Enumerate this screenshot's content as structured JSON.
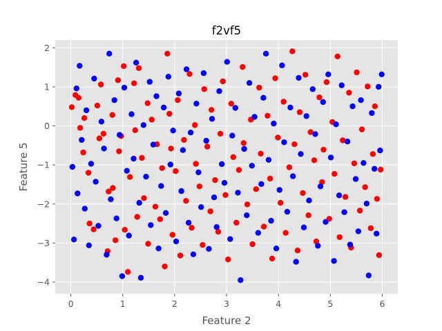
{
  "chart_data": {
    "type": "scatter",
    "title": "f2vf5",
    "xlabel": "Feature 2",
    "ylabel": "Feature 5",
    "xlim": [
      -0.3,
      6.3
    ],
    "ylim": [
      -4.3,
      2.2
    ],
    "xticks": [
      "0",
      "1",
      "2",
      "3",
      "4",
      "5",
      "6"
    ],
    "xtick_values": [
      0,
      1,
      2,
      3,
      4,
      5,
      6
    ],
    "yticks": [
      "2",
      "1",
      "0",
      "−1",
      "−2",
      "−3",
      "−4"
    ],
    "ytick_values": [
      2,
      1,
      0,
      -1,
      -2,
      -3,
      -4
    ],
    "grid": true,
    "background_color": "#e5e5e5",
    "grid_color": "#ffffff",
    "series": [
      {
        "color": "#ff0000",
        "points": [
          [
            0.02,
            0.48
          ],
          [
            0.09,
            0.79
          ],
          [
            0.15,
            0.72
          ],
          [
            0.18,
            -0.05
          ],
          [
            0.24,
            -0.68
          ],
          [
            0.26,
            0.2
          ],
          [
            0.34,
            -1.2
          ],
          [
            0.36,
            -2.5
          ],
          [
            0.44,
            -2.65
          ],
          [
            0.51,
            0.52
          ],
          [
            0.55,
            -0.32
          ],
          [
            0.58,
            1.06
          ],
          [
            0.63,
            -0.2
          ],
          [
            0.71,
            -3.21
          ],
          [
            0.73,
            -1.68
          ],
          [
            0.8,
            0.28
          ],
          [
            0.81,
            -1.59
          ],
          [
            0.86,
            -2.93
          ],
          [
            0.91,
            1.17
          ],
          [
            0.93,
            -0.65
          ],
          [
            0.97,
            -0.26
          ],
          [
            1.02,
            1.53
          ],
          [
            1.04,
            -2.66
          ],
          [
            1.1,
            -3.74
          ],
          [
            1.14,
            -1.31
          ],
          [
            1.22,
            1.09
          ],
          [
            1.24,
            -0.11
          ],
          [
            1.28,
            -2.33
          ],
          [
            1.31,
            1.48
          ],
          [
            1.37,
            -0.82
          ],
          [
            1.41,
            -1.85
          ],
          [
            1.48,
            0.58
          ],
          [
            1.49,
            -3.02
          ],
          [
            1.56,
            0.16
          ],
          [
            1.63,
            -2.07
          ],
          [
            1.66,
            -0.47
          ],
          [
            1.72,
            -2.39
          ],
          [
            1.76,
            -1.08
          ],
          [
            1.81,
            -3.6
          ],
          [
            1.86,
            1.85
          ],
          [
            1.9,
            0.31
          ],
          [
            1.93,
            -0.58
          ],
          [
            1.96,
            -2.79
          ],
          [
            2.02,
            -1.16
          ],
          [
            2.06,
            0.66
          ],
          [
            2.11,
            -3.32
          ],
          [
            2.18,
            -0.36
          ],
          [
            2.22,
            -1.92
          ],
          [
            2.29,
            1.33
          ],
          [
            2.33,
            -2.61
          ],
          [
            2.39,
            0.02
          ],
          [
            2.41,
            -0.97
          ],
          [
            2.48,
            -1.55
          ],
          [
            2.54,
            -3.05
          ],
          [
            2.57,
            0.94
          ],
          [
            2.63,
            -0.53
          ],
          [
            2.69,
            -2.19
          ],
          [
            2.71,
            0.41
          ],
          [
            2.78,
            -1.39
          ],
          [
            2.84,
            -2.71
          ],
          [
            2.88,
            -0.2
          ],
          [
            2.93,
            1.14
          ],
          [
            2.98,
            -1.77
          ],
          [
            3.03,
            -3.42
          ],
          [
            3.09,
            0.57
          ],
          [
            3.13,
            -0.8
          ],
          [
            3.19,
            -2.48
          ],
          [
            3.24,
            -1.13
          ],
          [
            3.31,
            1.51
          ],
          [
            3.33,
            -0.44
          ],
          [
            3.4,
            -2.01
          ],
          [
            3.47,
            0.16
          ],
          [
            3.5,
            -3.03
          ],
          [
            3.57,
            -1.62
          ],
          [
            3.63,
            0.98
          ],
          [
            3.66,
            -0.71
          ],
          [
            3.72,
            -2.58
          ],
          [
            3.79,
            0.26
          ],
          [
            3.84,
            -1.35
          ],
          [
            3.88,
            -3.4
          ],
          [
            3.94,
            1.22
          ],
          [
            3.99,
            -0.3
          ],
          [
            4.04,
            -1.97
          ],
          [
            4.1,
            0.62
          ],
          [
            4.14,
            -2.74
          ],
          [
            4.21,
            -1.06
          ],
          [
            4.27,
            1.91
          ],
          [
            4.31,
            -0.47
          ],
          [
            4.37,
            -3.19
          ],
          [
            4.41,
            0.35
          ],
          [
            4.47,
            -1.72
          ],
          [
            4.52,
            1.31
          ],
          [
            4.58,
            -2.29
          ],
          [
            4.62,
            -0.16
          ],
          [
            4.69,
            -0.88
          ],
          [
            4.73,
            -2.96
          ],
          [
            4.79,
            0.73
          ],
          [
            4.84,
            -1.44
          ],
          [
            4.87,
            -0.61
          ],
          [
            4.93,
            1.12
          ],
          [
            4.98,
            -2.38
          ],
          [
            5.04,
            0.1
          ],
          [
            5.08,
            -1.23
          ],
          [
            5.14,
            1.78
          ],
          [
            5.18,
            -2.85
          ],
          [
            5.24,
            -0.37
          ],
          [
            5.29,
            -1.82
          ],
          [
            5.36,
            0.85
          ],
          [
            5.4,
            -3.12
          ],
          [
            5.46,
            -0.96
          ],
          [
            5.51,
            1.37
          ],
          [
            5.57,
            -2.17
          ],
          [
            5.61,
            -0.09
          ],
          [
            5.67,
            -1.57
          ],
          [
            5.72,
            1.01
          ],
          [
            5.78,
            -2.62
          ],
          [
            5.82,
            -0.72
          ],
          [
            5.86,
            0.5
          ],
          [
            5.9,
            -1.87
          ],
          [
            5.94,
            -3.31
          ],
          [
            5.97,
            -1.12
          ]
        ]
      },
      {
        "color": "#0000ff",
        "points": [
          [
            0.03,
            -1.05
          ],
          [
            0.06,
            -2.91
          ],
          [
            0.11,
            0.96
          ],
          [
            0.13,
            -1.73
          ],
          [
            0.17,
            1.54
          ],
          [
            0.21,
            -0.36
          ],
          [
            0.27,
            -2.12
          ],
          [
            0.3,
            0.4
          ],
          [
            0.35,
            -3.06
          ],
          [
            0.39,
            -0.97
          ],
          [
            0.45,
            1.21
          ],
          [
            0.48,
            -1.43
          ],
          [
            0.53,
            -2.56
          ],
          [
            0.59,
            0.11
          ],
          [
            0.64,
            -0.58
          ],
          [
            0.69,
            -3.3
          ],
          [
            0.74,
            1.85
          ],
          [
            0.77,
            -1.88
          ],
          [
            0.84,
            0.66
          ],
          [
            0.88,
            -2.37
          ],
          [
            0.94,
            -0.23
          ],
          [
            0.99,
            -3.85
          ],
          [
            1.03,
            0.98
          ],
          [
            1.08,
            -1.15
          ],
          [
            1.12,
            -2.81
          ],
          [
            1.17,
            0.3
          ],
          [
            1.21,
            -0.84
          ],
          [
            1.26,
            1.62
          ],
          [
            1.32,
            -1.97
          ],
          [
            1.35,
            -3.89
          ],
          [
            1.4,
            0.02
          ],
          [
            1.45,
            -1.3
          ],
          [
            1.52,
            1.13
          ],
          [
            1.54,
            -2.54
          ],
          [
            1.59,
            -0.48
          ],
          [
            1.65,
            0.76
          ],
          [
            1.69,
            -3.14
          ],
          [
            1.74,
            -1.54
          ],
          [
            1.79,
            0.47
          ],
          [
            1.83,
            -2.23
          ],
          [
            1.88,
            1.26
          ],
          [
            1.92,
            -0.99
          ],
          [
            1.97,
            -0.12
          ],
          [
            2.03,
            -2.96
          ],
          [
            2.08,
            0.83
          ],
          [
            2.13,
            -1.67
          ],
          [
            2.16,
            -0.62
          ],
          [
            2.23,
            1.45
          ],
          [
            2.27,
            -2.48
          ],
          [
            2.31,
            -0.17
          ],
          [
            2.36,
            -3.29
          ],
          [
            2.42,
            0.57
          ],
          [
            2.46,
            -1.19
          ],
          [
            2.51,
            -2.08
          ],
          [
            2.56,
            1.35
          ],
          [
            2.61,
            -0.38
          ],
          [
            2.66,
            -3.15
          ],
          [
            2.72,
            0.18
          ],
          [
            2.76,
            -1.83
          ],
          [
            2.81,
            -2.59
          ],
          [
            2.86,
            0.89
          ],
          [
            2.91,
            -0.98
          ],
          [
            2.96,
            -1.46
          ],
          [
            3.01,
            1.64
          ],
          [
            3.07,
            -2.9
          ],
          [
            3.11,
            -0.25
          ],
          [
            3.17,
            0.46
          ],
          [
            3.22,
            -1.71
          ],
          [
            3.27,
            -3.95
          ],
          [
            3.34,
            -0.59
          ],
          [
            3.39,
            -2.29
          ],
          [
            3.44,
            1.1
          ],
          [
            3.49,
            -1.02
          ],
          [
            3.54,
            0.23
          ],
          [
            3.61,
            -2.74
          ],
          [
            3.67,
            -1.49
          ],
          [
            3.71,
            0.72
          ],
          [
            3.76,
            1.85
          ],
          [
            3.81,
            -0.87
          ],
          [
            3.86,
            -2.43
          ],
          [
            3.91,
            0.06
          ],
          [
            3.96,
            -3.14
          ],
          [
            4.02,
            -1.64
          ],
          [
            4.07,
            1.55
          ],
          [
            4.11,
            -0.42
          ],
          [
            4.17,
            -2.2
          ],
          [
            4.23,
            0.47
          ],
          [
            4.28,
            -1.29
          ],
          [
            4.34,
            -3.48
          ],
          [
            4.39,
            1.23
          ],
          [
            4.43,
            -0.72
          ],
          [
            4.49,
            -2.6
          ],
          [
            4.54,
            0.25
          ],
          [
            4.59,
            -1.91
          ],
          [
            4.66,
            0.94
          ],
          [
            4.71,
            -0.21
          ],
          [
            4.76,
            -3.07
          ],
          [
            4.81,
            -1.55
          ],
          [
            4.86,
            0.61
          ],
          [
            4.91,
            -2.46
          ],
          [
            4.96,
            1.32
          ],
          [
            5.01,
            -0.81
          ],
          [
            5.07,
            -3.46
          ],
          [
            5.11,
            0.04
          ],
          [
            5.17,
            -1.78
          ],
          [
            5.22,
            1.04
          ],
          [
            5.27,
            -2.21
          ],
          [
            5.33,
            -0.4
          ],
          [
            5.38,
            -3.04
          ],
          [
            5.43,
            0.5
          ],
          [
            5.49,
            -1.36
          ],
          [
            5.54,
            -2.7
          ],
          [
            5.59,
            0.66
          ],
          [
            5.64,
            -0.95
          ],
          [
            5.7,
            -1.99
          ],
          [
            5.74,
            -3.83
          ],
          [
            5.8,
            0.33
          ],
          [
            5.85,
            -1.1
          ],
          [
            5.89,
            -2.76
          ],
          [
            5.93,
            1.0
          ],
          [
            5.96,
            -0.63
          ],
          [
            5.99,
            1.32
          ]
        ]
      }
    ]
  }
}
